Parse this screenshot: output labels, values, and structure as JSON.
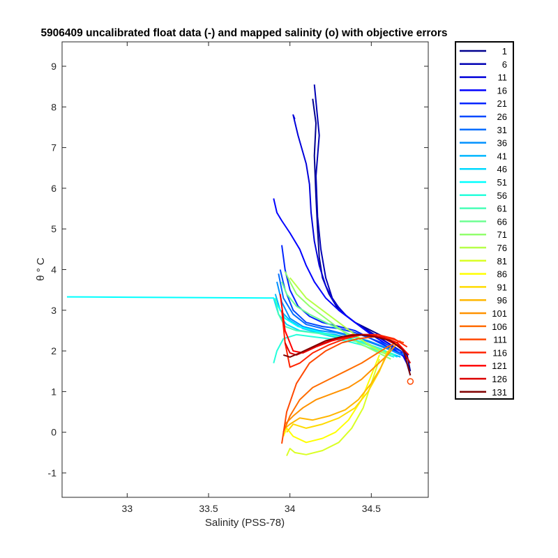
{
  "chart_data": {
    "type": "line",
    "title": "5906409 uncalibrated float data (-) and mapped salinity (o) with objective errors",
    "xlabel": "Salinity (PSS-78)",
    "ylabel": "θ ° C",
    "xlim": [
      32.6,
      34.85
    ],
    "ylim": [
      -1.6,
      9.6
    ],
    "xticks": [
      33,
      33.5,
      34,
      34.5
    ],
    "yticks": [
      -1,
      0,
      1,
      2,
      3,
      4,
      5,
      6,
      7,
      8,
      9
    ],
    "xtick_labels": [
      "33",
      "33.5",
      "34",
      "34.5"
    ],
    "ytick_labels": [
      "-1",
      "0",
      "1",
      "2",
      "3",
      "4",
      "5",
      "6",
      "7",
      "8",
      "9"
    ],
    "grid": false,
    "legend_position": "outside-right",
    "legend": [
      "1",
      "6",
      "11",
      "16",
      "21",
      "26",
      "31",
      "36",
      "41",
      "46",
      "51",
      "56",
      "61",
      "66",
      "71",
      "76",
      "81",
      "86",
      "91",
      "96",
      "101",
      "106",
      "111",
      "116",
      "121",
      "126",
      "131"
    ],
    "legend_colors": [
      "#00008f",
      "#0000b4",
      "#0000d9",
      "#0000ff",
      "#0024ff",
      "#0048ff",
      "#006dff",
      "#0091ff",
      "#00b6ff",
      "#00daff",
      "#00ffff",
      "#24ffdb",
      "#48ffb6",
      "#6dff92",
      "#91ff6d",
      "#b6ff48",
      "#daff24",
      "#ffff00",
      "#ffdb00",
      "#ffb600",
      "#ff9200",
      "#ff6d00",
      "#ff4800",
      "#ff2400",
      "#ff0000",
      "#db0000",
      "#800000"
    ],
    "series": [
      {
        "name": "1",
        "color": "#00008f",
        "x": [
          34.74,
          34.72,
          34.68,
          34.6,
          34.5,
          34.4,
          34.3,
          34.24,
          34.2,
          34.18,
          34.17,
          34.16,
          34.15,
          34.16,
          34.14
        ],
        "y": [
          1.5,
          1.9,
          2.1,
          2.3,
          2.5,
          2.7,
          3.0,
          3.4,
          3.8,
          4.3,
          5.0,
          5.8,
          6.8,
          7.6,
          8.2
        ]
      },
      {
        "name": "6",
        "color": "#0000b4",
        "x": [
          34.74,
          34.7,
          34.62,
          34.5,
          34.4,
          34.32,
          34.26,
          34.22,
          34.19,
          34.17,
          34.16,
          34.18,
          34.15
        ],
        "y": [
          1.4,
          1.95,
          2.15,
          2.45,
          2.7,
          2.95,
          3.3,
          3.8,
          4.5,
          5.3,
          6.3,
          7.3,
          8.55
        ]
      },
      {
        "name": "11",
        "color": "#0000d9",
        "x": [
          34.73,
          34.68,
          34.58,
          34.45,
          34.35,
          34.27,
          34.22,
          34.18,
          34.15,
          34.13,
          34.12,
          34.1,
          34.05,
          34.02,
          34.03
        ],
        "y": [
          1.6,
          2.0,
          2.25,
          2.55,
          2.85,
          3.2,
          3.6,
          4.1,
          4.7,
          5.4,
          6.1,
          6.6,
          7.3,
          7.8,
          7.7
        ]
      },
      {
        "name": "16",
        "color": "#0000ff",
        "x": [
          34.72,
          34.62,
          34.5,
          34.4,
          34.3,
          34.22,
          34.15,
          34.1,
          34.06,
          34.0,
          33.95,
          33.92,
          33.9
        ],
        "y": [
          1.8,
          2.1,
          2.4,
          2.7,
          3.0,
          3.3,
          3.7,
          4.1,
          4.5,
          4.9,
          5.2,
          5.4,
          5.75
        ]
      },
      {
        "name": "21",
        "color": "#0024ff",
        "x": [
          34.7,
          34.6,
          34.5,
          34.4,
          34.3,
          34.2,
          34.12,
          34.05,
          34.0,
          33.97,
          33.95
        ],
        "y": [
          1.9,
          2.1,
          2.3,
          2.5,
          2.6,
          2.7,
          2.85,
          3.1,
          3.5,
          4.0,
          4.6
        ]
      },
      {
        "name": "26",
        "color": "#0048ff",
        "x": [
          34.7,
          34.6,
          34.5,
          34.4,
          34.3,
          34.2,
          34.1,
          34.02,
          33.97,
          33.94
        ],
        "y": [
          1.95,
          2.15,
          2.3,
          2.45,
          2.55,
          2.6,
          2.7,
          3.0,
          3.5,
          4.0
        ]
      },
      {
        "name": "31",
        "color": "#006dff",
        "x": [
          34.7,
          34.6,
          34.5,
          34.4,
          34.3,
          34.2,
          34.1,
          34.02,
          33.96,
          33.93
        ],
        "y": [
          1.9,
          2.05,
          2.2,
          2.35,
          2.45,
          2.55,
          2.65,
          2.9,
          3.3,
          3.9
        ]
      },
      {
        "name": "36",
        "color": "#0091ff",
        "x": [
          34.68,
          34.58,
          34.48,
          34.38,
          34.28,
          34.18,
          34.08,
          34.0,
          33.95,
          33.92
        ],
        "y": [
          1.9,
          2.1,
          2.25,
          2.35,
          2.45,
          2.5,
          2.6,
          2.8,
          3.2,
          3.7
        ]
      },
      {
        "name": "41",
        "color": "#00b6ff",
        "x": [
          34.68,
          34.58,
          34.48,
          34.38,
          34.28,
          34.18,
          34.08,
          34.0,
          33.94,
          33.91
        ],
        "y": [
          1.85,
          2.0,
          2.15,
          2.3,
          2.4,
          2.45,
          2.55,
          2.75,
          3.0,
          3.4
        ]
      },
      {
        "name": "46",
        "color": "#00daff",
        "x": [
          34.66,
          34.56,
          34.46,
          34.36,
          34.26,
          34.16,
          34.06,
          33.98,
          33.93,
          33.9
        ],
        "y": [
          1.85,
          2.05,
          2.2,
          2.3,
          2.35,
          2.45,
          2.5,
          2.65,
          2.9,
          3.3
        ]
      },
      {
        "name": "51",
        "color": "#00ffff",
        "x": [
          34.65,
          34.55,
          34.45,
          34.35,
          34.25,
          34.15,
          34.05,
          33.97,
          33.9,
          33.5,
          33.0,
          32.63
        ],
        "y": [
          1.9,
          2.05,
          2.2,
          2.3,
          2.4,
          2.5,
          2.6,
          2.8,
          3.3,
          3.31,
          3.32,
          3.33
        ]
      },
      {
        "name": "56",
        "color": "#24ffdb",
        "x": [
          34.64,
          34.54,
          34.44,
          34.34,
          34.24,
          34.14,
          34.04,
          33.96,
          33.92,
          33.9
        ],
        "y": [
          1.85,
          2.0,
          2.15,
          2.25,
          2.3,
          2.35,
          2.4,
          2.3,
          2.0,
          1.7
        ]
      },
      {
        "name": "61",
        "color": "#48ffb6",
        "x": [
          34.64,
          34.54,
          34.44,
          34.34,
          34.24,
          34.14,
          34.04,
          33.97,
          33.93,
          33.91
        ],
        "y": [
          1.9,
          2.05,
          2.2,
          2.3,
          2.4,
          2.45,
          2.5,
          2.6,
          2.9,
          3.3
        ]
      },
      {
        "name": "66",
        "color": "#6dff92",
        "x": [
          34.62,
          34.52,
          34.42,
          34.32,
          34.22,
          34.12,
          34.04,
          33.98,
          33.95
        ],
        "y": [
          1.9,
          2.1,
          2.3,
          2.5,
          2.7,
          2.9,
          3.1,
          3.4,
          3.7
        ]
      },
      {
        "name": "71",
        "color": "#91ff6d",
        "x": [
          34.62,
          34.52,
          34.42,
          34.32,
          34.22,
          34.12,
          34.04,
          34.0,
          33.97
        ],
        "y": [
          1.8,
          2.0,
          2.2,
          2.5,
          2.8,
          3.1,
          3.4,
          3.7,
          3.95
        ]
      },
      {
        "name": "76",
        "color": "#b6ff48",
        "x": [
          34.6,
          34.5,
          34.4,
          34.3,
          34.2,
          34.1,
          34.04,
          34.0
        ],
        "y": [
          1.9,
          2.1,
          2.4,
          2.7,
          3.0,
          3.3,
          3.6,
          3.8
        ]
      },
      {
        "name": "81",
        "color": "#daff24",
        "x": [
          34.55,
          34.5,
          34.45,
          34.38,
          34.3,
          34.2,
          34.1,
          34.03,
          34.0,
          33.98
        ],
        "y": [
          1.8,
          1.2,
          0.6,
          0.1,
          -0.25,
          -0.45,
          -0.55,
          -0.5,
          -0.4,
          -0.58
        ]
      },
      {
        "name": "86",
        "color": "#ffff00",
        "x": [
          34.55,
          34.5,
          34.44,
          34.36,
          34.28,
          34.2,
          34.1,
          34.02,
          33.98,
          33.96
        ],
        "y": [
          1.9,
          1.4,
          0.8,
          0.3,
          0.0,
          -0.15,
          -0.25,
          -0.1,
          0.1,
          -0.1
        ]
      },
      {
        "name": "91",
        "color": "#ffdb00",
        "x": [
          34.6,
          34.55,
          34.48,
          34.4,
          34.3,
          34.2,
          34.1,
          34.02,
          33.98
        ],
        "y": [
          2.0,
          1.5,
          1.0,
          0.6,
          0.35,
          0.2,
          0.1,
          0.2,
          0.0
        ]
      },
      {
        "name": "96",
        "color": "#ffb600",
        "x": [
          34.62,
          34.56,
          34.5,
          34.42,
          34.34,
          34.24,
          34.14,
          34.06,
          34.0,
          33.97
        ],
        "y": [
          2.1,
          1.6,
          1.2,
          0.8,
          0.55,
          0.4,
          0.3,
          0.35,
          0.2,
          0.1
        ]
      },
      {
        "name": "101",
        "color": "#ff9200",
        "x": [
          34.66,
          34.6,
          34.52,
          34.44,
          34.36,
          34.26,
          34.16,
          34.08,
          34.02,
          33.97
        ],
        "y": [
          2.2,
          1.9,
          1.6,
          1.3,
          1.1,
          0.95,
          0.8,
          0.6,
          0.4,
          0.2
        ]
      },
      {
        "name": "106",
        "color": "#ff6d00",
        "x": [
          34.68,
          34.6,
          34.52,
          34.44,
          34.34,
          34.24,
          34.14,
          34.06,
          34.0,
          33.96
        ],
        "y": [
          2.25,
          2.1,
          1.9,
          1.7,
          1.5,
          1.3,
          1.1,
          0.8,
          0.4,
          0.0
        ]
      },
      {
        "name": "111",
        "color": "#ff4800",
        "x": [
          34.7,
          34.62,
          34.52,
          34.42,
          34.32,
          34.22,
          34.12,
          34.04,
          33.98,
          33.95
        ],
        "y": [
          2.2,
          2.3,
          2.35,
          2.3,
          2.2,
          2.0,
          1.7,
          1.2,
          0.5,
          -0.28
        ]
      },
      {
        "name": "116",
        "color": "#ff2400",
        "x": [
          34.72,
          34.64,
          34.54,
          34.44,
          34.34,
          34.24,
          34.14,
          34.06,
          34.0,
          33.97,
          33.95
        ],
        "y": [
          2.1,
          2.3,
          2.4,
          2.4,
          2.3,
          2.15,
          1.95,
          1.7,
          1.6,
          2.2,
          3.0
        ]
      },
      {
        "name": "121",
        "color": "#ff0000",
        "x": [
          34.73,
          34.66,
          34.56,
          34.46,
          34.36,
          34.26,
          34.16,
          34.08,
          34.02,
          33.97,
          33.94
        ],
        "y": [
          1.9,
          2.2,
          2.35,
          2.4,
          2.35,
          2.25,
          2.1,
          1.95,
          2.0,
          2.5,
          3.4
        ]
      },
      {
        "name": "126",
        "color": "#db0000",
        "x": [
          34.74,
          34.68,
          34.58,
          34.48,
          34.38,
          34.28,
          34.18,
          34.1,
          34.04,
          34.0,
          33.97
        ],
        "y": [
          1.7,
          2.1,
          2.3,
          2.4,
          2.4,
          2.3,
          2.15,
          2.0,
          1.9,
          1.95,
          2.2
        ]
      },
      {
        "name": "131",
        "color": "#800000",
        "x": [
          34.74,
          34.7,
          34.62,
          34.52,
          34.42,
          34.32,
          34.22,
          34.14,
          34.06,
          34.0,
          33.96
        ],
        "y": [
          1.4,
          2.0,
          2.25,
          2.35,
          2.4,
          2.35,
          2.25,
          2.1,
          1.95,
          1.85,
          1.9
        ]
      }
    ],
    "markers": {
      "marker": "circle",
      "color": "#ff4800",
      "x": [
        34.74
      ],
      "y": [
        1.25
      ]
    }
  }
}
